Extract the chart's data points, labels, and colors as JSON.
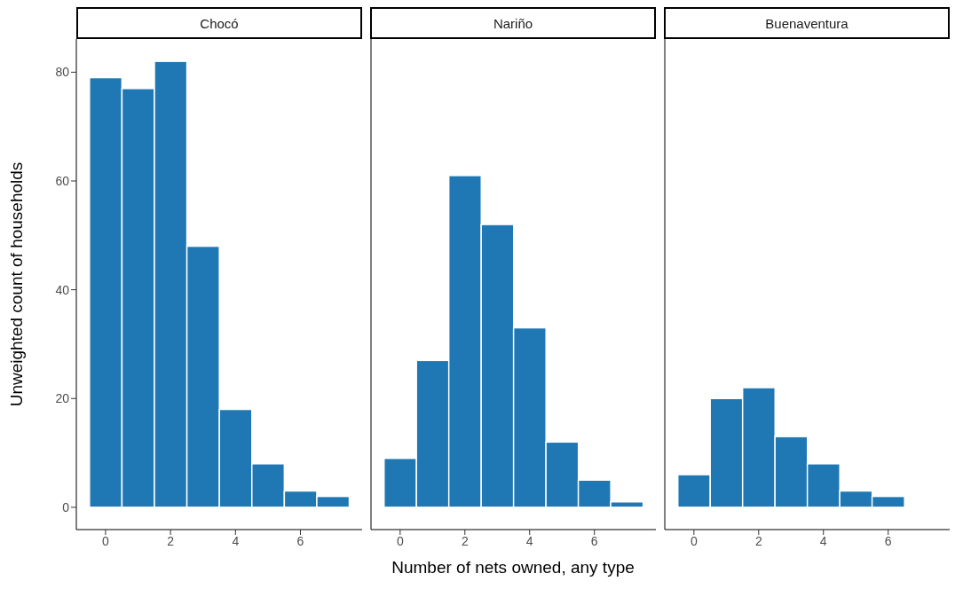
{
  "chart_data": [
    {
      "type": "histogram",
      "title": "Chocó",
      "ylabel": "Unweighted count of households",
      "bins": [
        -0.5,
        0.5,
        1.5,
        2.5,
        3.5,
        4.5,
        5.5,
        6.5,
        7.5
      ],
      "values": [
        79,
        77,
        82,
        48,
        18,
        8,
        3,
        2
      ],
      "color": "#1f78b4",
      "xlim": [
        -0.9,
        7.9
      ],
      "xticks": [
        0,
        2,
        4,
        6
      ],
      "ylim": [
        -4.1,
        86.1
      ],
      "yticks": [
        0,
        20,
        40,
        60,
        80
      ]
    },
    {
      "type": "histogram",
      "title": "Nariño",
      "xlabel": "Number of nets owned, any type",
      "bins": [
        -0.5,
        0.5,
        1.5,
        2.5,
        3.5,
        4.5,
        5.5,
        6.5,
        7.5
      ],
      "values": [
        9,
        27,
        61,
        52,
        33,
        12,
        5,
        1
      ],
      "color": "#1f78b4",
      "xlim": [
        -0.9,
        7.9
      ],
      "xticks": [
        0,
        2,
        4,
        6
      ],
      "ylim": [
        -4.1,
        86.1
      ],
      "tick_labels": "x"
    },
    {
      "type": "histogram",
      "title": "Buenaventura",
      "bins": [
        -0.5,
        0.5,
        1.5,
        2.5,
        3.5,
        4.5,
        5.5,
        6.5
      ],
      "values": [
        6,
        20,
        22,
        13,
        8,
        3,
        2
      ],
      "color": "#1f78b4",
      "xlim": [
        -0.9,
        7.9
      ],
      "xticks": [
        0,
        2,
        4,
        6
      ],
      "ylim": [
        -4.1,
        86.1
      ],
      "tick_labels": "x"
    }
  ]
}
